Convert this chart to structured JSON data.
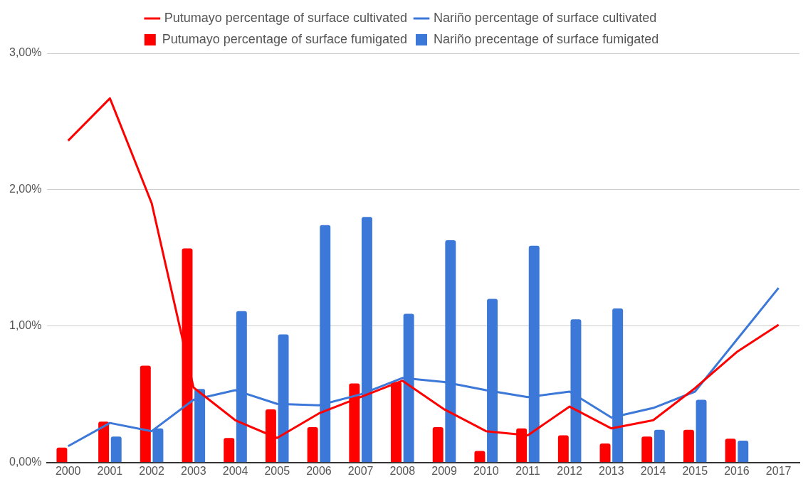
{
  "chart_data": {
    "type": "bar",
    "categories": [
      "2000",
      "2001",
      "2002",
      "2003",
      "2004",
      "2005",
      "2006",
      "2007",
      "2008",
      "2009",
      "2010",
      "2011",
      "2012",
      "2013",
      "2014",
      "2015",
      "2016",
      "2017"
    ],
    "series": [
      {
        "name": "Putumayo percentage of surface fumigated",
        "color": "#ff0000",
        "values": [
          0.11,
          0.3,
          0.71,
          1.57,
          0.18,
          0.39,
          0.26,
          0.58,
          0.59,
          0.26,
          0.085,
          0.25,
          0.2,
          0.14,
          0.19,
          0.24,
          0.175,
          null
        ]
      },
      {
        "name": "Nariño precentage of surface fumigated",
        "color": "#3c78d8",
        "values": [
          null,
          0.19,
          0.25,
          0.54,
          1.11,
          0.94,
          1.74,
          1.8,
          1.09,
          1.63,
          1.2,
          1.59,
          1.05,
          1.13,
          0.24,
          0.46,
          0.16,
          null
        ]
      },
      {
        "name": "Putumayo percentage of surface cultivated",
        "type": "line",
        "color": "#ff0000",
        "values": [
          2.36,
          2.67,
          1.9,
          0.55,
          0.31,
          0.18,
          0.36,
          0.48,
          0.6,
          0.39,
          0.23,
          0.2,
          0.41,
          0.25,
          0.31,
          0.545,
          0.81,
          1.01
        ]
      },
      {
        "name": "Nariño percentage of surface cultivated",
        "type": "line",
        "color": "#3c78d8",
        "values": [
          0.12,
          0.29,
          0.23,
          0.46,
          0.53,
          0.43,
          0.42,
          0.5,
          0.62,
          0.59,
          0.53,
          0.48,
          0.52,
          0.33,
          0.4,
          0.52,
          0.9,
          1.28
        ]
      }
    ],
    "ylim": [
      0,
      3
    ],
    "yticks": [
      {
        "value": 0,
        "label": "0,00%"
      },
      {
        "value": 1,
        "label": "1,00%"
      },
      {
        "value": 2,
        "label": "2,00%"
      },
      {
        "value": 3,
        "label": "3,00%"
      }
    ],
    "grid": "y",
    "legend": "top",
    "line_style": "solid",
    "marker": "none"
  }
}
